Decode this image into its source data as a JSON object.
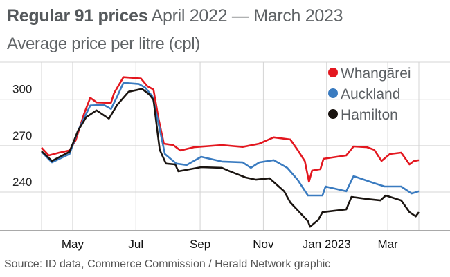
{
  "title": {
    "bold": "Regular 91 prices",
    "light": "April 2022 — March 2023"
  },
  "subtitle": "Average price per litre (cpl)",
  "source": "Source: ID data, Commerce Commission / Herald Network graphic",
  "chart_data": {
    "type": "line",
    "title": "Regular 91 prices April 2022 — March 2023",
    "ylabel": "Average price per litre (cpl)",
    "xlabel": "",
    "x_unit": "days since 1 April 2022",
    "xlim": [
      0,
      364
    ],
    "ylim": [
      215,
      324
    ],
    "grid": true,
    "legend_position": "top-right",
    "yticks": [
      {
        "value": 240,
        "label": "240"
      },
      {
        "value": 270,
        "label": "270"
      },
      {
        "value": 300,
        "label": "300"
      }
    ],
    "xticks": [
      {
        "value": 30,
        "label": "May"
      },
      {
        "value": 91,
        "label": "Jul"
      },
      {
        "value": 153,
        "label": "Sep"
      },
      {
        "value": 214,
        "label": "Nov"
      },
      {
        "value": 275,
        "label": "Jan 2023"
      },
      {
        "value": 334,
        "label": "Mar"
      }
    ],
    "series": [
      {
        "name": "Whangārei",
        "color": "#e3171f",
        "points": [
          [
            0,
            268.7
          ],
          [
            7,
            263.7
          ],
          [
            17,
            265.5
          ],
          [
            27,
            266.9
          ],
          [
            33,
            273.6
          ],
          [
            41,
            290.6
          ],
          [
            47,
            301
          ],
          [
            53,
            298
          ],
          [
            67,
            297.7
          ],
          [
            70,
            304
          ],
          [
            79,
            314.3
          ],
          [
            87,
            313.9
          ],
          [
            96,
            313.4
          ],
          [
            102,
            308.5
          ],
          [
            108,
            306.3
          ],
          [
            113,
            287
          ],
          [
            118,
            271.3
          ],
          [
            127,
            270.4
          ],
          [
            134,
            266.9
          ],
          [
            147,
            269
          ],
          [
            174,
            270.4
          ],
          [
            194,
            269.2
          ],
          [
            210,
            271.3
          ],
          [
            224,
            275.4
          ],
          [
            240,
            274
          ],
          [
            247,
            267.3
          ],
          [
            254,
            260
          ],
          [
            258,
            246.7
          ],
          [
            261,
            253.9
          ],
          [
            269,
            254.8
          ],
          [
            272,
            261.5
          ],
          [
            281,
            262.4
          ],
          [
            294,
            263.7
          ],
          [
            301,
            269.5
          ],
          [
            314,
            269
          ],
          [
            321,
            267.3
          ],
          [
            328,
            260.1
          ],
          [
            336,
            264.6
          ],
          [
            347,
            265.5
          ],
          [
            355,
            257.9
          ],
          [
            359,
            260
          ],
          [
            364,
            260.6
          ]
        ]
      },
      {
        "name": "Auckland",
        "color": "#3a7bc0",
        "points": [
          [
            0,
            266
          ],
          [
            10,
            259.2
          ],
          [
            27,
            264.6
          ],
          [
            35,
            279.4
          ],
          [
            47,
            296
          ],
          [
            60,
            296.4
          ],
          [
            67,
            293.7
          ],
          [
            73,
            301.8
          ],
          [
            79,
            310.7
          ],
          [
            94,
            309.9
          ],
          [
            100,
            307.6
          ],
          [
            107,
            301.8
          ],
          [
            112,
            287
          ],
          [
            119,
            264.6
          ],
          [
            130,
            258.4
          ],
          [
            140,
            257.5
          ],
          [
            154,
            262.8
          ],
          [
            174,
            259.7
          ],
          [
            194,
            259.2
          ],
          [
            202,
            255.7
          ],
          [
            210,
            259.2
          ],
          [
            224,
            260.6
          ],
          [
            237,
            255.7
          ],
          [
            247,
            248
          ],
          [
            257,
            237.8
          ],
          [
            271,
            237.8
          ],
          [
            274,
            243.6
          ],
          [
            294,
            240.5
          ],
          [
            301,
            250.3
          ],
          [
            321,
            245.8
          ],
          [
            331,
            243.6
          ],
          [
            347,
            243.6
          ],
          [
            357,
            239.1
          ],
          [
            364,
            240.5
          ]
        ]
      },
      {
        "name": "Hamilton",
        "color": "#1a1410",
        "points": [
          [
            0,
            266.4
          ],
          [
            10,
            260.1
          ],
          [
            27,
            266
          ],
          [
            35,
            279.4
          ],
          [
            43,
            288.4
          ],
          [
            53,
            292.8
          ],
          [
            65,
            287.5
          ],
          [
            73,
            296.4
          ],
          [
            84,
            304.9
          ],
          [
            97,
            306.7
          ],
          [
            104,
            303.1
          ],
          [
            108,
            299.6
          ],
          [
            114,
            267.3
          ],
          [
            120,
            258.4
          ],
          [
            129,
            257.9
          ],
          [
            132,
            253.4
          ],
          [
            154,
            256.1
          ],
          [
            174,
            255.7
          ],
          [
            180,
            253.9
          ],
          [
            197,
            249.4
          ],
          [
            207,
            248
          ],
          [
            220,
            248.9
          ],
          [
            234,
            240.5
          ],
          [
            240,
            233.3
          ],
          [
            257,
            221.2
          ],
          [
            259,
            217.6
          ],
          [
            267,
            222.1
          ],
          [
            271,
            227
          ],
          [
            294,
            228.8
          ],
          [
            299,
            236.9
          ],
          [
            314,
            235.5
          ],
          [
            327,
            234.6
          ],
          [
            332,
            237.8
          ],
          [
            347,
            234.6
          ],
          [
            355,
            227
          ],
          [
            361,
            224.3
          ],
          [
            364,
            227
          ]
        ]
      }
    ]
  }
}
